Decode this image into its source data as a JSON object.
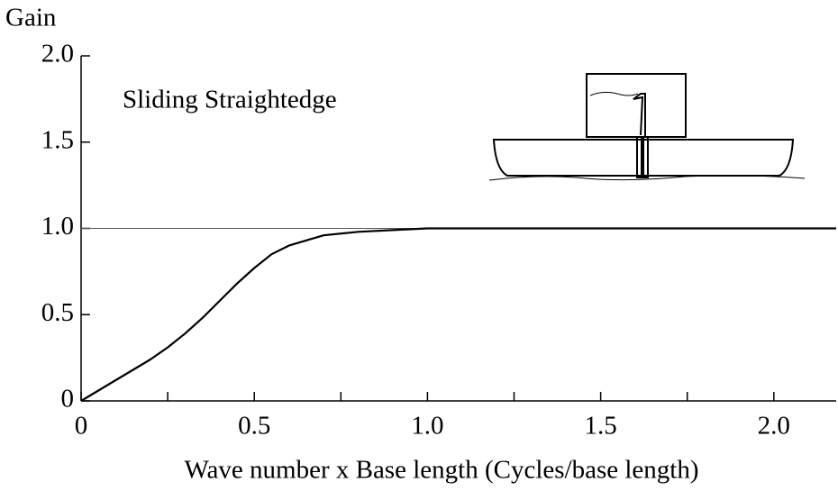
{
  "chart_data": {
    "type": "line",
    "y_label": "Gain",
    "x_label": "Wave number x Base length (Cycles/base length)",
    "annotation": "Sliding Straightedge",
    "x": [
      0,
      0.05,
      0.1,
      0.15,
      0.2,
      0.25,
      0.3,
      0.35,
      0.4,
      0.45,
      0.5,
      0.55,
      0.6,
      0.7,
      0.8,
      0.9,
      1.0,
      1.2,
      1.5,
      2.0,
      2.18
    ],
    "values": [
      0,
      0.06,
      0.12,
      0.18,
      0.24,
      0.31,
      0.39,
      0.48,
      0.58,
      0.68,
      0.77,
      0.85,
      0.9,
      0.96,
      0.98,
      0.99,
      1.0,
      1.0,
      1.0,
      1.0,
      1.0
    ],
    "color": "#000000",
    "hline": 1,
    "xlim": [
      0,
      2.18
    ],
    "ylim": [
      0,
      2
    ],
    "xticks": [
      0,
      0.5,
      {
        "value": 1,
        "label": "1.0"
      },
      1.5,
      {
        "value": 2,
        "label": "2.0"
      }
    ],
    "xminor_ticks": [
      0.25,
      0.75,
      1.25,
      1.75
    ],
    "yticks": [
      0,
      0.5,
      {
        "value": 1,
        "label": "1.0"
      },
      1.5,
      {
        "value": 2,
        "label": "2.0"
      }
    ]
  }
}
